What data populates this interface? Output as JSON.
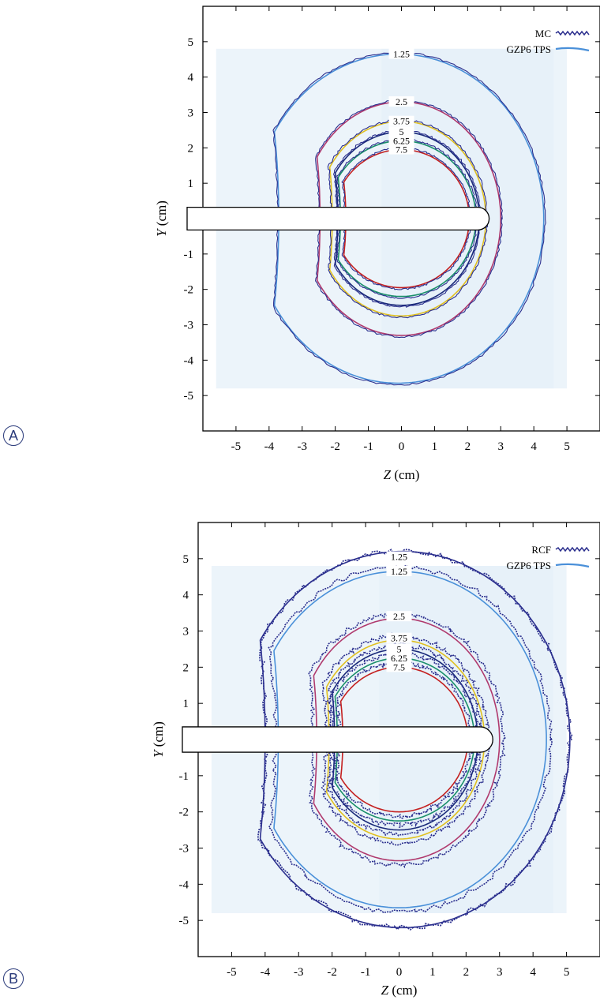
{
  "panels": [
    {
      "label": "A",
      "xlabel_var": "Z",
      "xlabel_unit": " (cm)",
      "ylabel_var": "Y",
      "ylabel_unit": " (cm)",
      "legend": [
        {
          "name": "MC",
          "color": "#2b2f8e",
          "style": "jagged"
        },
        {
          "name": "GZP6 TPS",
          "color": "#4a90d9",
          "style": "smooth"
        }
      ]
    },
    {
      "label": "B",
      "xlabel_var": "Z",
      "xlabel_unit": " (cm)",
      "ylabel_var": "Y",
      "ylabel_unit": " (cm)",
      "legend": [
        {
          "name": "RCF",
          "color": "#2b2f8e",
          "style": "dotted"
        },
        {
          "name": "GZP6 TPS",
          "color": "#4a90d9",
          "style": "smooth"
        }
      ]
    }
  ],
  "chart_data": [
    {
      "type": "contour",
      "panel": "A",
      "xlabel": "Z (cm)",
      "ylabel": "Y (cm)",
      "xlim": [
        -6,
        6
      ],
      "ylim": [
        -6,
        6
      ],
      "xticks": [
        -5,
        -4,
        -3,
        -2,
        -1,
        0,
        1,
        2,
        3,
        4,
        5
      ],
      "yticks": [
        -5,
        -4,
        -3,
        -2,
        -1,
        0,
        1,
        2,
        3,
        4,
        5
      ],
      "legend": [
        "MC",
        "GZP6 TPS"
      ],
      "applicator": {
        "z_start": -6,
        "z_end": 2.65,
        "y_half_width": 0.32
      },
      "isodose_levels": [
        {
          "label": "1.25",
          "color": "#4a90d9",
          "cz": -0.1,
          "rz": 4.4,
          "ry": 4.65,
          "label_y": 4.65
        },
        {
          "label": "2.5",
          "color": "#b03a6e",
          "cz": 0.0,
          "rz": 3.0,
          "ry": 3.3,
          "label_y": 3.3
        },
        {
          "label": "3.75",
          "color": "#e0c020",
          "cz": 0.0,
          "rz": 2.55,
          "ry": 2.75,
          "label_y": 2.75
        },
        {
          "label": "5",
          "color": "#1a2a7a",
          "cz": 0.0,
          "rz": 2.35,
          "ry": 2.45,
          "label_y": 2.45
        },
        {
          "label": "6.25",
          "color": "#1a8f6a",
          "cz": 0.0,
          "rz": 2.25,
          "ry": 2.2,
          "label_y": 2.2
        },
        {
          "label": "7.5",
          "color": "#c42020",
          "cz": 0.0,
          "rz": 2.05,
          "ry": 1.95,
          "label_y": 1.95
        }
      ]
    },
    {
      "type": "contour",
      "panel": "B",
      "xlabel": "Z (cm)",
      "ylabel": "Y (cm)",
      "xlim": [
        -6,
        6
      ],
      "ylim": [
        -6,
        6
      ],
      "xticks": [
        -5,
        -4,
        -3,
        -2,
        -1,
        0,
        1,
        2,
        3,
        4,
        5
      ],
      "yticks": [
        -5,
        -4,
        -3,
        -2,
        -1,
        0,
        1,
        2,
        3,
        4,
        5
      ],
      "legend": [
        "RCF",
        "GZP6 TPS"
      ],
      "applicator": {
        "z_start": -6,
        "z_end": 2.8,
        "y_half_width": 0.35
      },
      "isodose_levels": [
        {
          "label": "1.25",
          "color": "#2b2f8e",
          "cz": 0.1,
          "rz": 5.0,
          "ry": 5.2,
          "label_y": 5.05
        },
        {
          "label": "1.25",
          "color": "#4a90d9",
          "cz": 0.0,
          "rz": 4.4,
          "ry": 4.65,
          "label_y": 4.65
        },
        {
          "label": "2.5",
          "color": "#b03a6e",
          "cz": 0.0,
          "rz": 3.0,
          "ry": 3.35,
          "label_y": 3.4
        },
        {
          "label": "3.75",
          "color": "#e0c020",
          "cz": 0.0,
          "rz": 2.55,
          "ry": 2.75,
          "label_y": 2.8
        },
        {
          "label": "5",
          "color": "#1a2a7a",
          "cz": 0.0,
          "rz": 2.35,
          "ry": 2.5,
          "label_y": 2.5
        },
        {
          "label": "6.25",
          "color": "#1a8f6a",
          "cz": 0.0,
          "rz": 2.25,
          "ry": 2.25,
          "label_y": 2.25
        },
        {
          "label": "7.5",
          "color": "#c42020",
          "cz": 0.0,
          "rz": 2.05,
          "ry": 2.0,
          "label_y": 2.0
        }
      ]
    }
  ]
}
